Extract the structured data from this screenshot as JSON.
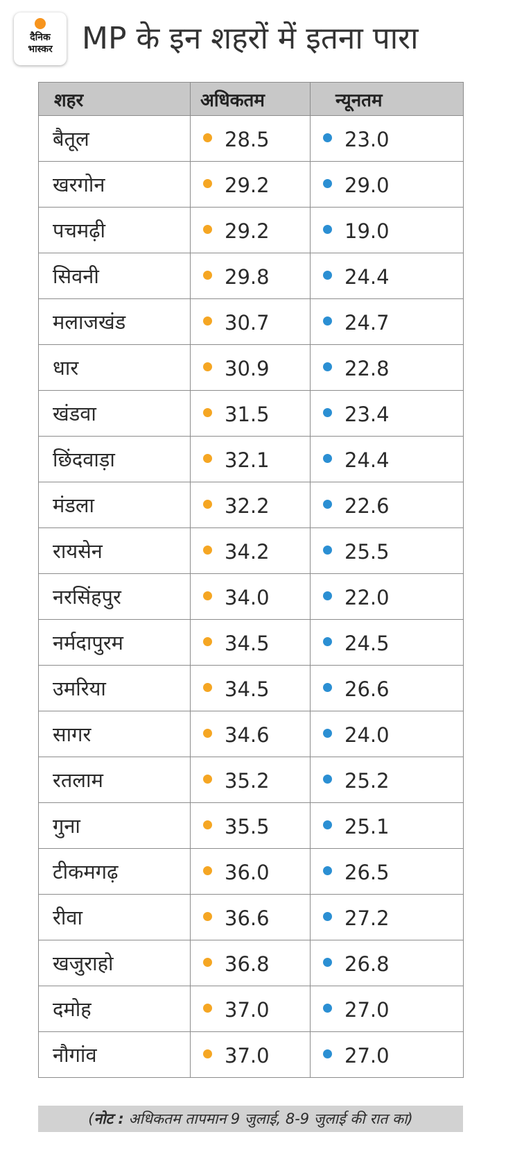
{
  "logo": {
    "line1": "दैनिक",
    "line2": "भास्कर"
  },
  "title": "MP के इन शहरों में इतना पारा",
  "table": {
    "headers": [
      "शहर",
      "अधिकतम",
      "न्यूनतम"
    ],
    "rows": [
      {
        "city": "बैतूल",
        "max": "28.5",
        "min": "23.0"
      },
      {
        "city": "खरगोन",
        "max": "29.2",
        "min": "29.0"
      },
      {
        "city": "पचमढ़ी",
        "max": "29.2",
        "min": "19.0"
      },
      {
        "city": "सिवनी",
        "max": "29.8",
        "min": "24.4"
      },
      {
        "city": "मलाजखंड",
        "max": "30.7",
        "min": "24.7"
      },
      {
        "city": "धार",
        "max": "30.9",
        "min": "22.8"
      },
      {
        "city": "खंडवा",
        "max": "31.5",
        "min": "23.4"
      },
      {
        "city": "छिंदवाड़ा",
        "max": "32.1",
        "min": "24.4"
      },
      {
        "city": "मंडला",
        "max": "32.2",
        "min": "22.6"
      },
      {
        "city": "रायसेन",
        "max": "34.2",
        "min": "25.5"
      },
      {
        "city": "नरसिंहपुर",
        "max": "34.0",
        "min": "22.0"
      },
      {
        "city": "नर्मदापुरम",
        "max": "34.5",
        "min": "24.5"
      },
      {
        "city": "उमरिया",
        "max": "34.5",
        "min": "26.6"
      },
      {
        "city": "सागर",
        "max": "34.6",
        "min": "24.0"
      },
      {
        "city": "रतलाम",
        "max": "35.2",
        "min": "25.2"
      },
      {
        "city": "गुना",
        "max": "35.5",
        "min": "25.1"
      },
      {
        "city": "टीकमगढ़",
        "max": "36.0",
        "min": "26.5"
      },
      {
        "city": "रीवा",
        "max": "36.6",
        "min": "27.2"
      },
      {
        "city": "खजुराहो",
        "max": "36.8",
        "min": "26.8"
      },
      {
        "city": "दमोह",
        "max": "37.0",
        "min": "27.0"
      },
      {
        "city": "नौगांव",
        "max": "37.0",
        "min": "27.0"
      }
    ]
  },
  "note": {
    "open": "(",
    "label": "नोट :",
    "text": " अधिकतम तापमान 9 जुलाई, 8-9 जुलाई की रात का)"
  },
  "colors": {
    "max_dot": "#f5a623",
    "min_dot": "#2b8fd3",
    "header_bg": "#c8c8c8",
    "note_bg": "#d2d2d2"
  }
}
